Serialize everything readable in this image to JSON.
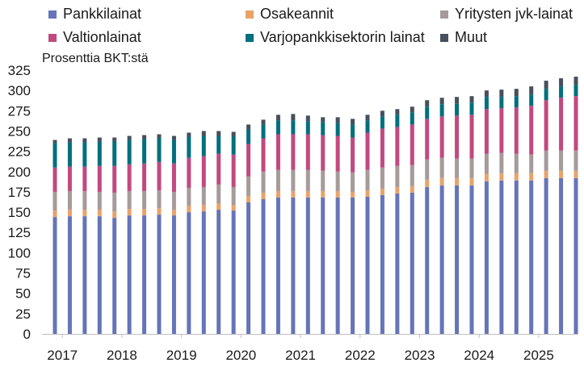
{
  "chart_data": {
    "type": "bar",
    "stacked": true,
    "ylabel": "Prosenttia BKT:stä",
    "ylim": [
      0,
      325
    ],
    "yticks": [
      0,
      25,
      50,
      75,
      100,
      125,
      150,
      175,
      200,
      225,
      250,
      275,
      300,
      325
    ],
    "grid": false,
    "legend_position": "top",
    "year_labels": [
      "2017",
      "2018",
      "2019",
      "2020",
      "2021",
      "2022",
      "2023",
      "2024",
      "2025"
    ],
    "categories": [
      "2017Q1",
      "2017Q2",
      "2017Q3",
      "2017Q4",
      "2018Q1",
      "2018Q2",
      "2018Q3",
      "2018Q4",
      "2019Q1",
      "2019Q2",
      "2019Q3",
      "2019Q4",
      "2020Q1",
      "2020Q2",
      "2020Q3",
      "2020Q4",
      "2021Q1",
      "2021Q2",
      "2021Q3",
      "2021Q4",
      "2022Q1",
      "2022Q2",
      "2022Q3",
      "2022Q4",
      "2023Q1",
      "2023Q2",
      "2023Q3",
      "2023Q4",
      "2024Q1",
      "2024Q2",
      "2024Q3",
      "2024Q4",
      "2025Q1",
      "2025Q2",
      "2025Q3",
      "2025Q4"
    ],
    "series": [
      {
        "name": "Pankkilainat",
        "color": "#6674b8",
        "values": [
          144,
          145,
          145,
          145,
          143,
          146,
          146,
          147,
          146,
          150,
          151,
          153,
          152,
          162,
          166,
          168,
          168,
          168,
          168,
          168,
          168,
          169,
          171,
          173,
          174,
          181,
          183,
          183,
          183,
          188,
          189,
          189,
          189,
          192,
          192,
          192
        ]
      },
      {
        "name": "Osakeannit",
        "color": "#e8a36b",
        "values": [
          8,
          8,
          8,
          8,
          8,
          8,
          8,
          8,
          7,
          8,
          8,
          8,
          7,
          8,
          8,
          8,
          8,
          8,
          8,
          8,
          7,
          8,
          8,
          8,
          8,
          9,
          9,
          9,
          9,
          9,
          9,
          9,
          9,
          9,
          9,
          9
        ]
      },
      {
        "name": "Yritysten jvk-lainat",
        "color": "#a69a9a",
        "values": [
          23,
          23,
          23,
          22,
          23,
          22,
          22,
          22,
          22,
          22,
          22,
          23,
          22,
          24,
          26,
          26,
          26,
          26,
          25,
          24,
          24,
          25,
          26,
          26,
          26,
          25,
          25,
          24,
          24,
          25,
          25,
          24,
          23,
          25,
          25,
          25
        ]
      },
      {
        "name": "Valtionlainat",
        "color": "#c2497f",
        "values": [
          30,
          30,
          30,
          32,
          33,
          33,
          34,
          35,
          35,
          37,
          38,
          38,
          40,
          40,
          41,
          44,
          44,
          44,
          44,
          44,
          43,
          46,
          48,
          48,
          50,
          50,
          51,
          53,
          54,
          55,
          55,
          57,
          60,
          62,
          65,
          67
        ]
      },
      {
        "name": "Varjopankkisektorin lainat",
        "color": "#006f7e",
        "values": [
          30,
          30,
          30,
          30,
          30,
          30,
          30,
          29,
          29,
          26,
          25,
          22,
          22,
          18,
          17,
          17,
          17,
          16,
          16,
          16,
          16,
          15,
          15,
          15,
          15,
          15,
          15,
          15,
          15,
          15,
          14,
          14,
          14,
          14,
          14,
          14
        ]
      },
      {
        "name": "Muut",
        "color": "#47505c",
        "values": [
          4,
          5,
          5,
          5,
          5,
          5,
          5,
          5,
          5,
          5,
          6,
          6,
          6,
          6,
          6,
          7,
          8,
          7,
          6,
          7,
          7,
          7,
          7,
          7,
          7,
          8,
          8,
          8,
          8,
          8,
          9,
          9,
          10,
          10,
          10,
          10
        ]
      }
    ]
  }
}
